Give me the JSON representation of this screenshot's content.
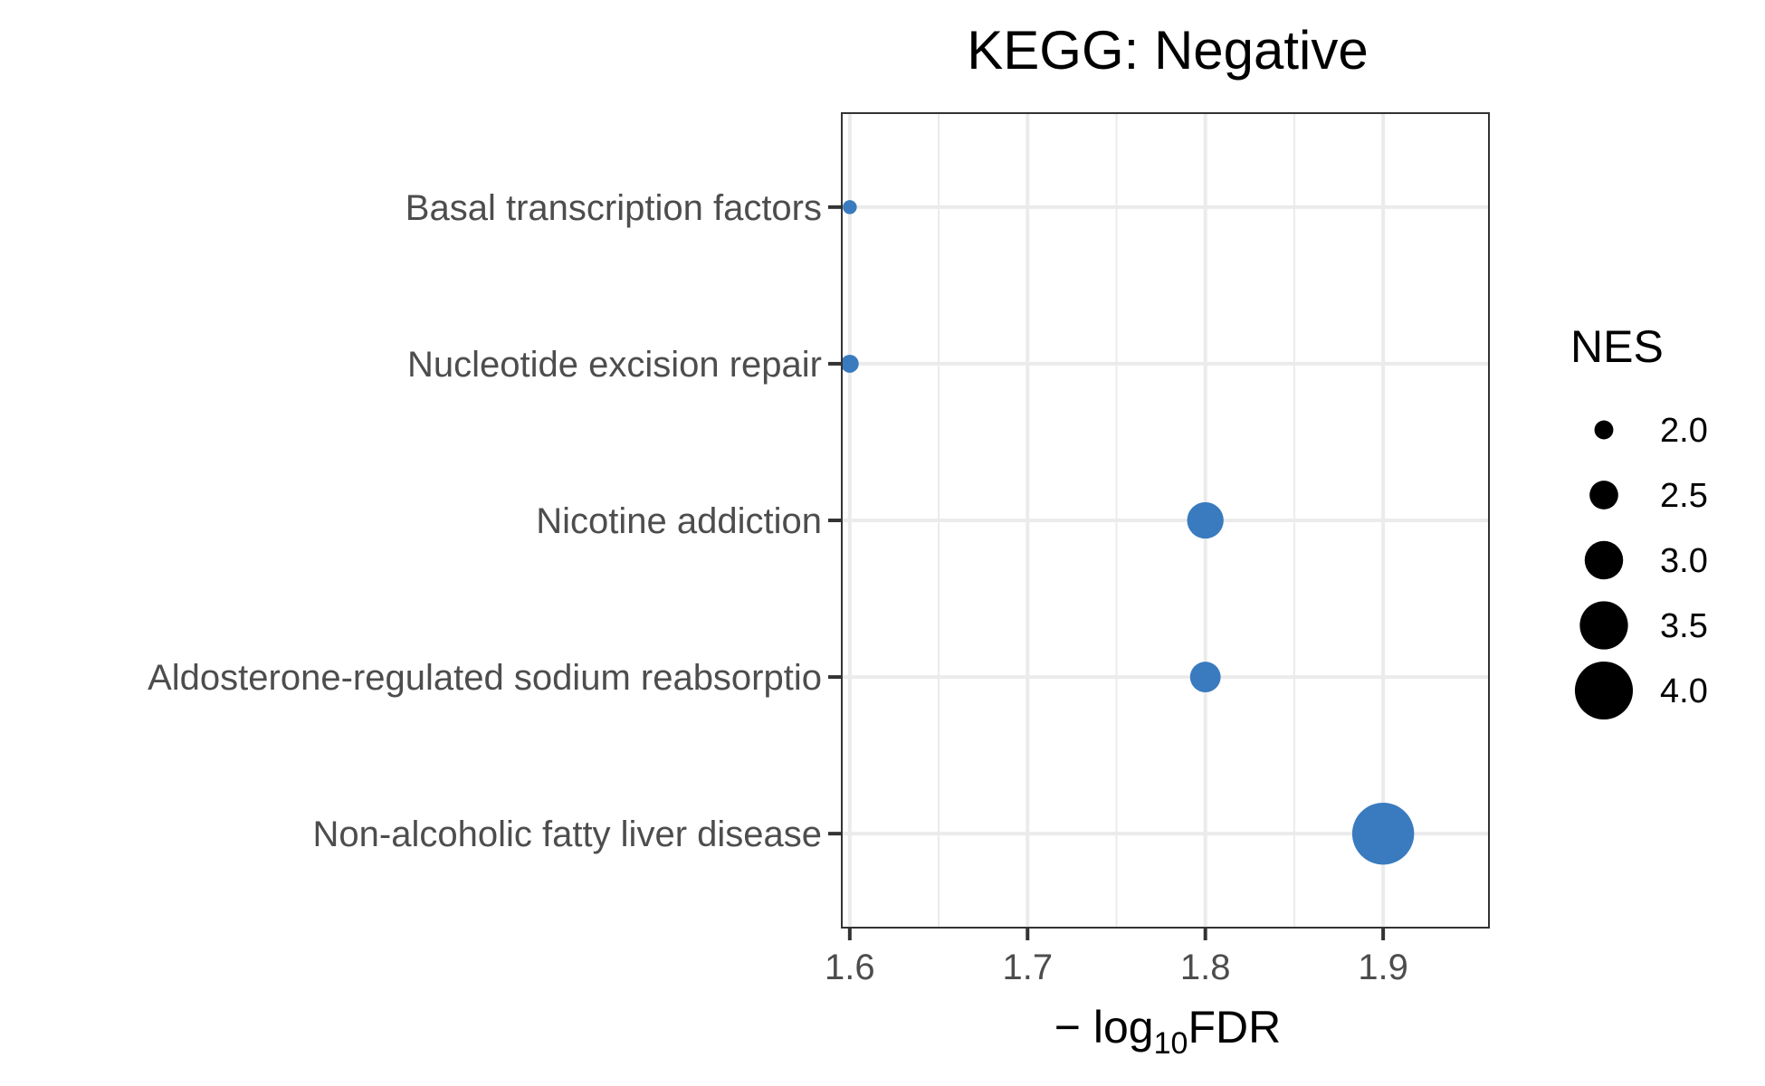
{
  "chart_data": {
    "type": "scatter",
    "title": "KEGG: Negative",
    "xlabel": {
      "prefix": "− log",
      "subscript": "10",
      "suffix": "FDR"
    },
    "ylabel": "",
    "xlim": [
      1.5955,
      1.9595
    ],
    "xticks": [
      "1.6",
      "1.7",
      "1.8",
      "1.9"
    ],
    "xtick_values": [
      1.6,
      1.7,
      1.8,
      1.9
    ],
    "categories": [
      "Basal transcription factors",
      "Nucleotide excision repair",
      "Nicotine addiction",
      "Aldosterone-regulated sodium reabsorptio",
      "Non-alcoholic fatty liver disease"
    ],
    "points": [
      {
        "category": "Basal transcription factors",
        "x": 1.6,
        "nes": 1.75
      },
      {
        "category": "Nucleotide excision repair",
        "x": 1.6,
        "nes": 1.95
      },
      {
        "category": "Nicotine addiction",
        "x": 1.8,
        "nes": 2.9
      },
      {
        "category": "Aldosterone-regulated sodium reabsorptio",
        "x": 1.8,
        "nes": 2.6
      },
      {
        "category": "Non-alcoholic fatty liver disease",
        "x": 1.9,
        "nes": 4.2
      }
    ],
    "size_legend": {
      "title": "NES",
      "labels": [
        "2.0",
        "2.5",
        "3.0",
        "3.5",
        "4.0"
      ],
      "values": [
        2.0,
        2.5,
        3.0,
        3.5,
        4.0
      ]
    },
    "point_color": "#3a7bbf",
    "legend_color": "#000000",
    "grid": true,
    "legend_position": "right"
  }
}
